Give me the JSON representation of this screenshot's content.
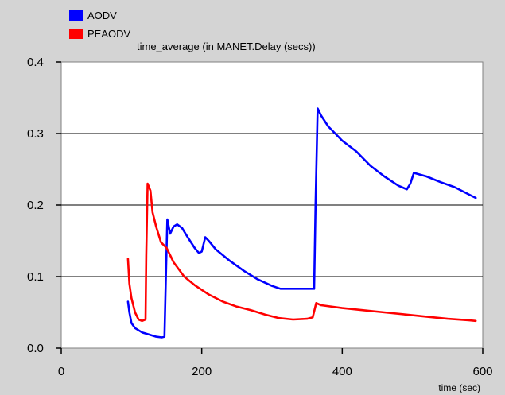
{
  "chart_data": {
    "type": "line",
    "title": "time_average (in MANET.Delay (secs))",
    "xlabel": "time (sec)",
    "ylabel": "",
    "xlim": [
      0,
      600
    ],
    "ylim": [
      0,
      0.4
    ],
    "x_ticks": [
      "0",
      "200",
      "400",
      "600"
    ],
    "y_ticks": [
      "0.0",
      "0.1",
      "0.2",
      "0.3",
      "0.4"
    ],
    "grid": "horizontal",
    "legend_position": "top-left",
    "series": [
      {
        "name": "AODV",
        "color": "#0000ff",
        "points": [
          [
            95,
            0.065
          ],
          [
            97,
            0.05
          ],
          [
            100,
            0.035
          ],
          [
            105,
            0.028
          ],
          [
            115,
            0.022
          ],
          [
            125,
            0.019
          ],
          [
            135,
            0.016
          ],
          [
            143,
            0.015
          ],
          [
            147,
            0.016
          ],
          [
            149,
            0.1
          ],
          [
            151,
            0.18
          ],
          [
            155,
            0.16
          ],
          [
            160,
            0.17
          ],
          [
            165,
            0.173
          ],
          [
            172,
            0.168
          ],
          [
            180,
            0.155
          ],
          [
            190,
            0.14
          ],
          [
            196,
            0.133
          ],
          [
            200,
            0.135
          ],
          [
            205,
            0.155
          ],
          [
            210,
            0.15
          ],
          [
            220,
            0.138
          ],
          [
            240,
            0.122
          ],
          [
            260,
            0.108
          ],
          [
            280,
            0.096
          ],
          [
            300,
            0.087
          ],
          [
            312,
            0.083
          ],
          [
            340,
            0.083
          ],
          [
            360,
            0.083
          ],
          [
            362,
            0.2
          ],
          [
            365,
            0.335
          ],
          [
            370,
            0.325
          ],
          [
            380,
            0.31
          ],
          [
            400,
            0.29
          ],
          [
            420,
            0.275
          ],
          [
            440,
            0.255
          ],
          [
            460,
            0.24
          ],
          [
            480,
            0.227
          ],
          [
            492,
            0.222
          ],
          [
            497,
            0.23
          ],
          [
            502,
            0.245
          ],
          [
            520,
            0.24
          ],
          [
            540,
            0.232
          ],
          [
            560,
            0.225
          ],
          [
            580,
            0.215
          ],
          [
            590,
            0.21
          ]
        ]
      },
      {
        "name": "PEAODV",
        "color": "#ff0000",
        "points": [
          [
            95,
            0.125
          ],
          [
            97,
            0.09
          ],
          [
            100,
            0.07
          ],
          [
            105,
            0.05
          ],
          [
            110,
            0.04
          ],
          [
            115,
            0.038
          ],
          [
            120,
            0.04
          ],
          [
            121,
            0.13
          ],
          [
            123,
            0.23
          ],
          [
            127,
            0.22
          ],
          [
            130,
            0.19
          ],
          [
            135,
            0.17
          ],
          [
            142,
            0.148
          ],
          [
            150,
            0.14
          ],
          [
            160,
            0.12
          ],
          [
            175,
            0.1
          ],
          [
            190,
            0.088
          ],
          [
            210,
            0.075
          ],
          [
            230,
            0.065
          ],
          [
            250,
            0.058
          ],
          [
            270,
            0.053
          ],
          [
            290,
            0.047
          ],
          [
            310,
            0.042
          ],
          [
            330,
            0.04
          ],
          [
            350,
            0.041
          ],
          [
            358,
            0.043
          ],
          [
            363,
            0.063
          ],
          [
            370,
            0.06
          ],
          [
            400,
            0.056
          ],
          [
            430,
            0.053
          ],
          [
            460,
            0.05
          ],
          [
            490,
            0.047
          ],
          [
            520,
            0.044
          ],
          [
            550,
            0.041
          ],
          [
            580,
            0.039
          ],
          [
            590,
            0.038
          ]
        ]
      }
    ]
  }
}
